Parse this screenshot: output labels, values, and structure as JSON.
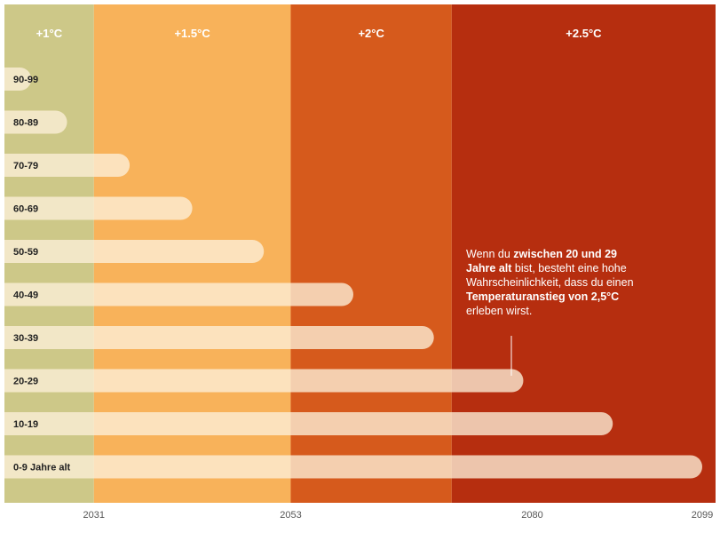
{
  "chart_data": {
    "type": "bar",
    "orientation": "horizontal",
    "x_domain": [
      2021,
      2099
    ],
    "bands": [
      {
        "label": "+1°C",
        "from": 2021,
        "to": 2031,
        "color": "#cdc888"
      },
      {
        "label": "+1.5°C",
        "from": 2031,
        "to": 2053,
        "color": "#f8b25a"
      },
      {
        "label": "+2°C",
        "from": 2053,
        "to": 2071,
        "color": "#d65a1c"
      },
      {
        "label": "+2.5°C",
        "from": 2071,
        "to": 2099,
        "color": "#b62e0f"
      }
    ],
    "categories": [
      "90-99",
      "80-89",
      "70-79",
      "60-69",
      "50-59",
      "40-49",
      "30-39",
      "20-29",
      "10-19",
      "0-9 Jahre alt"
    ],
    "values": [
      2024,
      2028,
      2035,
      2042,
      2050,
      2060,
      2069,
      2079,
      2089,
      2099
    ],
    "x_ticks": [
      2031,
      2053,
      2080,
      2099
    ],
    "bar_color": "#fdf0d8"
  },
  "annotation": {
    "p1": "Wenn du ",
    "b1": "zwischen 20 und 29 Jahre alt",
    "p2": " bist, besteht eine hohe Wahrscheinlichkeit, dass du einen ",
    "b2": "Temperaturanstieg von 2,5°C",
    "p3": " erleben wirst."
  }
}
